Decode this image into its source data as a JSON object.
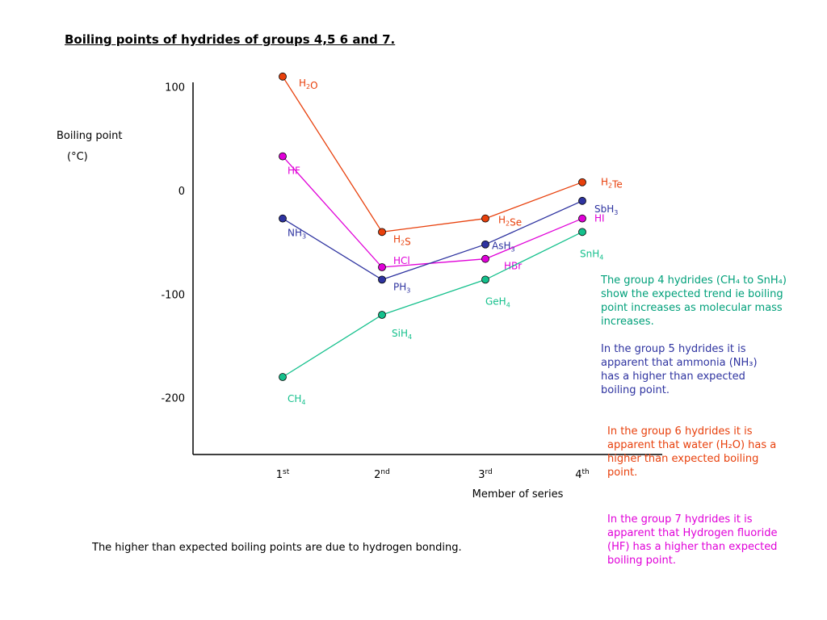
{
  "title": "Boiling points of hydrides of groups 4,5 6 and 7.",
  "footnote": "The higher than expected boiling points are due to hydrogen bonding.",
  "notes": [
    {
      "text": "The group 4 hydrides (CH₄ to SnH₄) show the expected trend ie boiling point increases as molecular mass increases.",
      "color": "#00a07a"
    },
    {
      "text": "In the group 5 hydrides it is apparent that ammonia (NH₃) has a higher than expected boiling point.",
      "color": "#2e33a0"
    },
    {
      "text": "In the group 6 hydrides it is apparent that water (H₂O) has a higher than expected boiling point.",
      "color": "#e8400c"
    },
    {
      "text": "In the group 7 hydrides it is apparent that Hydrogen fluoride (HF) has a higher than expected boiling point.",
      "color": "#e000d8"
    }
  ],
  "chart_data": {
    "type": "line",
    "title": "Boiling points of hydrides of groups 4,5 6 and 7.",
    "xlabel": "Member of series",
    "ylabel": "Boiling point",
    "yunit": "(°C)",
    "categories": [
      {
        "base": "1",
        "sup": "st"
      },
      {
        "base": "2",
        "sup": "nd"
      },
      {
        "base": "3",
        "sup": "rd"
      },
      {
        "base": "4",
        "sup": "th"
      }
    ],
    "yticks": [
      100,
      0,
      -100,
      -200
    ],
    "ylim": [
      -255,
      105
    ],
    "grid": false,
    "legend": "none",
    "series": [
      {
        "name": "Group 6",
        "color": "#e8400c",
        "values": [
          110,
          -40,
          -27,
          8
        ],
        "labels": [
          {
            "parts": [
              [
                "H",
                ""
              ],
              [
                "2",
                "sub"
              ],
              [
                "O",
                ""
              ]
            ],
            "dx": 20,
            "dy": 12
          },
          {
            "parts": [
              [
                "H",
                ""
              ],
              [
                "2",
                "sub"
              ],
              [
                "S",
                ""
              ]
            ],
            "dx": 14,
            "dy": 13
          },
          {
            "parts": [
              [
                "H",
                ""
              ],
              [
                "2",
                "sub"
              ],
              [
                "Se",
                ""
              ]
            ],
            "dx": 16,
            "dy": 6
          },
          {
            "parts": [
              [
                "H",
                ""
              ],
              [
                "2",
                "sub"
              ],
              [
                "Te",
                ""
              ]
            ],
            "dx": 23,
            "dy": 4
          }
        ]
      },
      {
        "name": "Group 7",
        "color": "#e000d8",
        "values": [
          33,
          -74,
          -66,
          -27
        ],
        "labels": [
          {
            "parts": [
              [
                "HF",
                ""
              ]
            ],
            "dx": 6,
            "dy": 22
          },
          {
            "parts": [
              [
                "HCl",
                ""
              ]
            ],
            "dx": 14,
            "dy": -4
          },
          {
            "parts": [
              [
                "HBr",
                ""
              ]
            ],
            "dx": 23,
            "dy": 13
          },
          {
            "parts": [
              [
                "HI",
                ""
              ]
            ],
            "dx": 15,
            "dy": 4
          }
        ]
      },
      {
        "name": "Group 5",
        "color": "#2e33a0",
        "values": [
          -27,
          -86,
          -52,
          -10
        ],
        "labels": [
          {
            "parts": [
              [
                "NH",
                ""
              ],
              [
                "3",
                "sub"
              ]
            ],
            "dx": 6,
            "dy": 22
          },
          {
            "parts": [
              [
                "PH",
                ""
              ],
              [
                "3",
                "sub"
              ]
            ],
            "dx": 14,
            "dy": 13
          },
          {
            "parts": [
              [
                "AsH",
                ""
              ],
              [
                "3",
                "sub"
              ]
            ],
            "dx": 8,
            "dy": 6
          },
          {
            "parts": [
              [
                "SbH",
                ""
              ],
              [
                "3",
                "sub"
              ]
            ],
            "dx": 15,
            "dy": 14
          }
        ]
      },
      {
        "name": "Group 4",
        "color": "#14c08c",
        "values": [
          -180,
          -120,
          -86,
          -40
        ],
        "labels": [
          {
            "parts": [
              [
                "CH",
                ""
              ],
              [
                "4",
                "sub"
              ]
            ],
            "dx": 6,
            "dy": 31
          },
          {
            "parts": [
              [
                "SiH",
                ""
              ],
              [
                "4",
                "sub"
              ]
            ],
            "dx": 12,
            "dy": 27
          },
          {
            "parts": [
              [
                "GeH",
                ""
              ],
              [
                "4",
                "sub"
              ]
            ],
            "dx": 0,
            "dy": 31
          },
          {
            "parts": [
              [
                "SnH",
                ""
              ],
              [
                "4",
                "sub"
              ]
            ],
            "dx": -3,
            "dy": 31
          }
        ]
      }
    ]
  }
}
